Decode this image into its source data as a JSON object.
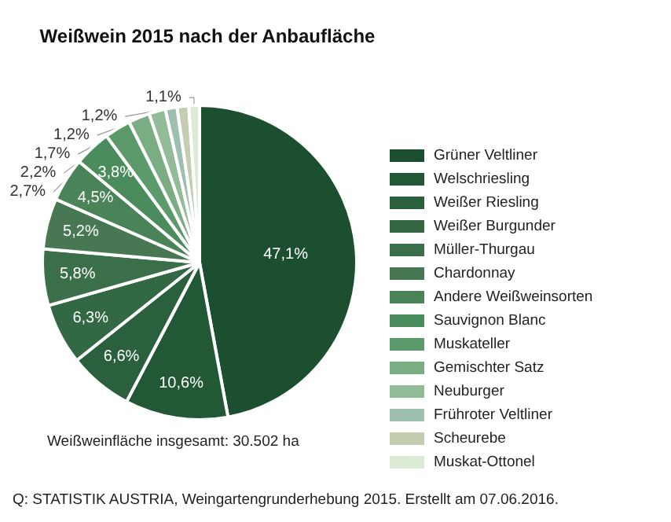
{
  "chart_data": {
    "type": "pie",
    "title": "Weißwein 2015 nach der Anbaufläche",
    "categories": [
      "Grüner Veltliner",
      "Welschriesling",
      "Weißer Riesling",
      "Weißer Burgunder",
      "Müller-Thurgau",
      "Chardonnay",
      "Andere Weißweinsorten",
      "Sauvignon Blanc",
      "Muskateller",
      "Gemischter Satz",
      "Neuburger",
      "Frühroter Veltliner",
      "Scheurebe",
      "Muskat-Ottonel"
    ],
    "values": [
      47.1,
      10.6,
      6.6,
      6.3,
      5.8,
      5.2,
      4.5,
      3.8,
      2.7,
      2.2,
      1.7,
      1.2,
      1.2,
      1.1
    ],
    "value_labels": [
      "47,1%",
      "10,6%",
      "6,6%",
      "6,3%",
      "5,8%",
      "5,2%",
      "4,5%",
      "3,8%",
      "2,7%",
      "2,2%",
      "1,7%",
      "1,2%",
      "1,2%",
      "1,1%"
    ],
    "colors": [
      "#1b4f30",
      "#225836",
      "#2a603d",
      "#336844",
      "#3a6f49",
      "#477853",
      "#4a8357",
      "#4b8c5d",
      "#5c9a6b",
      "#7aad82",
      "#92bb98",
      "#9ebfb0",
      "#c3cdb0",
      "#dcebd5"
    ],
    "legend": "right",
    "annotations": [
      "Weißweinfläche insgesamt: 30.502 ha",
      "Q: STATISTIK AUSTRIA, Weingartengrunderhebung 2015. Erstellt am 07.06.2016."
    ]
  }
}
